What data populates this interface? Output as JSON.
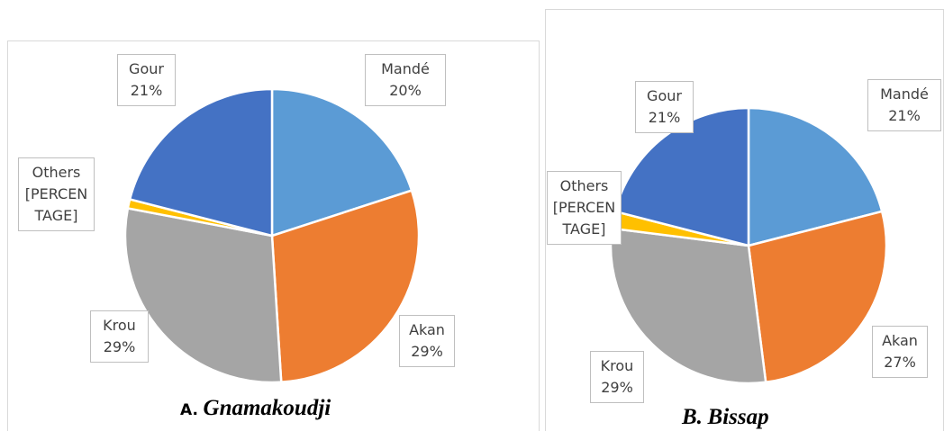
{
  "chart_data": [
    {
      "type": "pie",
      "title": [
        "A.",
        "Gnamakoudji"
      ],
      "categories": [
        "Mandé",
        "Akan",
        "Krou",
        "Others",
        "Gour"
      ],
      "values": [
        20,
        29,
        29,
        1,
        21
      ],
      "value_labels": [
        "20%",
        "29%",
        "29%",
        "[PERCENTAGE]",
        "21%"
      ],
      "colors": [
        "#5b9bd5",
        "#ed7d31",
        "#a5a5a5",
        "#ffc000",
        "#4472c4"
      ]
    },
    {
      "type": "pie",
      "title": [
        "B.",
        "Bissap"
      ],
      "categories": [
        "Mandé",
        "Akan",
        "Krou",
        "Others",
        "Gour"
      ],
      "values": [
        21,
        27,
        29,
        2,
        21
      ],
      "value_labels": [
        "21%",
        "27%",
        "29%",
        "[PERCENTAGE]",
        "21%"
      ],
      "colors": [
        "#5b9bd5",
        "#ed7d31",
        "#a5a5a5",
        "#ffc000",
        "#4472c4"
      ]
    }
  ]
}
